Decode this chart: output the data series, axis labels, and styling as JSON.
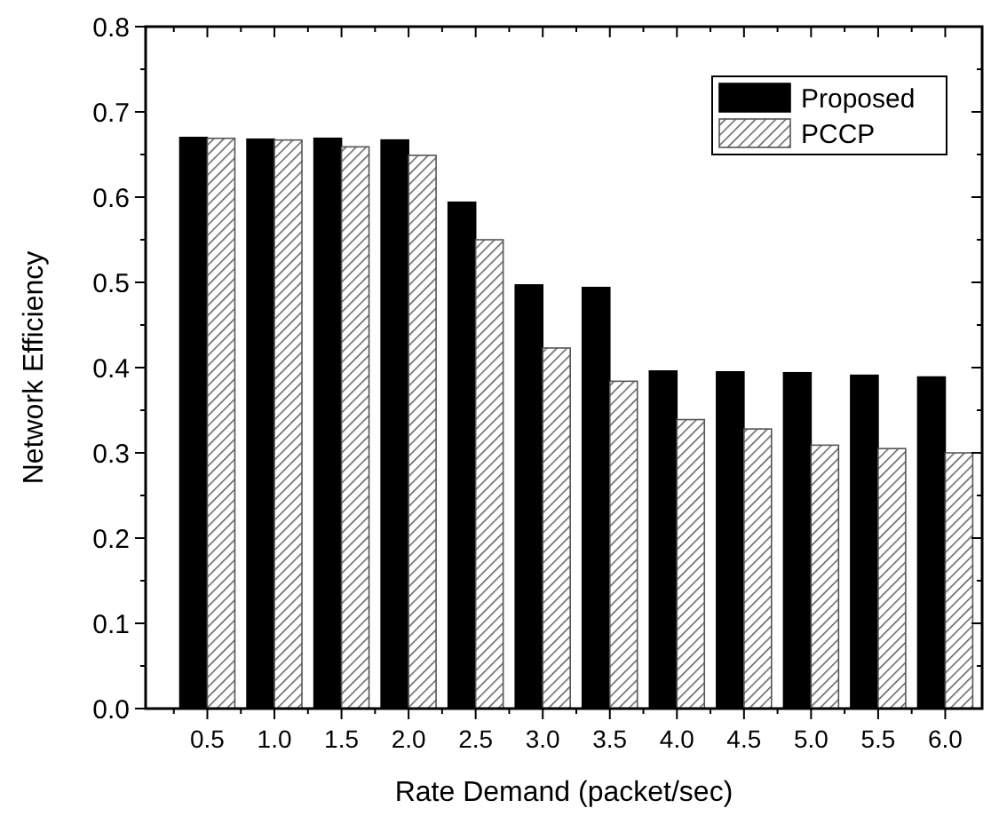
{
  "chart_data": {
    "type": "bar",
    "xlabel": "Rate Demand (packet/sec)",
    "ylabel": "Network Efficiency",
    "categories": [
      "0.5",
      "1.0",
      "1.5",
      "2.0",
      "2.5",
      "3.0",
      "3.5",
      "4.0",
      "4.5",
      "5.0",
      "5.5",
      "6.0"
    ],
    "series": [
      {
        "name": "Proposed",
        "color": "#000000",
        "values": [
          0.67,
          0.668,
          0.669,
          0.667,
          0.594,
          0.497,
          0.494,
          0.396,
          0.395,
          0.394,
          0.391,
          0.389
        ]
      },
      {
        "name": "PCCP",
        "color": "#555555",
        "values": [
          0.669,
          0.667,
          0.659,
          0.649,
          0.55,
          0.423,
          0.384,
          0.339,
          0.328,
          0.309,
          0.305,
          0.3
        ]
      }
    ],
    "ylim": [
      0,
      0.8
    ],
    "yticks": [
      {
        "value": 0,
        "label": "0.0"
      },
      {
        "value": 0.1,
        "label": "0.1"
      },
      {
        "value": 0.2,
        "label": "0.2"
      },
      {
        "value": 0.3,
        "label": "0.3"
      },
      {
        "value": 0.4,
        "label": "0.4"
      },
      {
        "value": 0.5,
        "label": "0.5"
      },
      {
        "value": 0.6,
        "label": "0.6"
      },
      {
        "value": 0.7,
        "label": "0.7"
      },
      {
        "value": 0.8,
        "label": "0.8"
      }
    ],
    "grid": false,
    "legend": "top right"
  }
}
